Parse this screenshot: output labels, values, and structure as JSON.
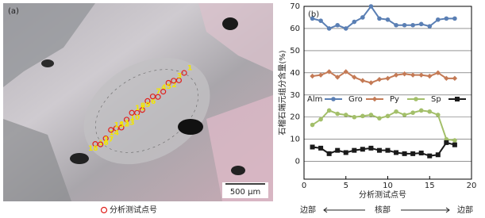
{
  "figure": {
    "photo": {
      "label": "(a)",
      "scale_bar": "500 μm",
      "legend": "分析测试点号",
      "points": [
        "1",
        "2",
        "3",
        "4",
        "5",
        "6",
        "7",
        "8",
        "9",
        "10",
        "11",
        "12",
        "13",
        "14",
        "15",
        "16",
        "17",
        "18"
      ]
    },
    "footer": {
      "left": "边部",
      "center": "核部",
      "right": "边部"
    }
  },
  "chart_data": {
    "type": "line",
    "label": "(b)",
    "x_label": "分析测试点号",
    "y_label": "石榴石端元组分含量(%)",
    "x": [
      1,
      2,
      3,
      4,
      5,
      6,
      7,
      8,
      9,
      10,
      11,
      12,
      13,
      14,
      15,
      16,
      17,
      18
    ],
    "series": [
      {
        "name": "Alm",
        "color": "#5a7fb4",
        "marker": "circle",
        "values": [
          64.5,
          63.5,
          60,
          61.5,
          60,
          63,
          65,
          70,
          64.5,
          64,
          61.5,
          61.5,
          61.5,
          62,
          61,
          64,
          64.5,
          64.5
        ]
      },
      {
        "name": "Gro",
        "color": "#c47a55",
        "marker": "diamond",
        "values": [
          38.5,
          39,
          40.5,
          38,
          40.5,
          38,
          36.5,
          35.5,
          37,
          37.5,
          39,
          39.5,
          39,
          39,
          38.5,
          40,
          37.5,
          37.5
        ]
      },
      {
        "name": "Py",
        "color": "#a3bf6a",
        "marker": "circle",
        "values": [
          16.5,
          19,
          23,
          21.5,
          21,
          20,
          20.5,
          21,
          19.5,
          20.5,
          22.5,
          21,
          22,
          23,
          22.5,
          21,
          10,
          9.5
        ]
      },
      {
        "name": "Sp",
        "color": "#1a1a1a",
        "marker": "square",
        "values": [
          6.5,
          6,
          3.5,
          5,
          4,
          5,
          5.5,
          6,
          5,
          5,
          4,
          3.5,
          3.5,
          3.8,
          2.5,
          3,
          8.5,
          7.5
        ]
      }
    ],
    "xlim": [
      0,
      20
    ],
    "xticks": [
      0,
      5,
      10,
      15,
      20
    ],
    "ylim": [
      -8,
      70
    ],
    "yticks": [
      0,
      10,
      20,
      30,
      40,
      50,
      60,
      70
    ],
    "grid": true
  }
}
